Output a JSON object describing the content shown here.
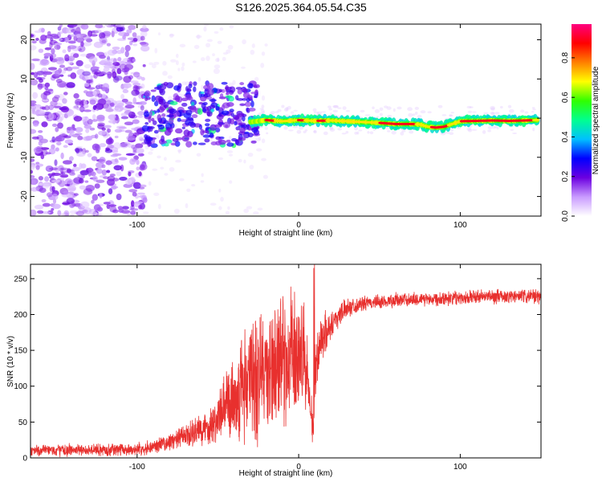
{
  "title": "S126.2025.364.05.54.C35",
  "chart_data": [
    {
      "type": "heatmap",
      "xlabel": "Height of straight line (km)",
      "ylabel": "Frequency (Hz)",
      "xlim": [
        -166,
        150
      ],
      "ylim": [
        -25,
        24
      ],
      "xticks": [
        -100,
        0,
        100
      ],
      "xtick_labels": [
        "-100",
        "0",
        "100"
      ],
      "yticks": [
        -20,
        -10,
        0,
        10,
        20
      ],
      "ytick_labels": [
        "-20",
        "-10",
        "0",
        "10",
        "20"
      ],
      "colorbar": {
        "label": "Normalized spectral amplitude",
        "range": [
          0,
          0.97
        ],
        "ticks": [
          0.0,
          0.2,
          0.4,
          0.6,
          0.8
        ],
        "tick_labels": [
          "0.0",
          "0.2",
          "0.4",
          "0.6",
          "0.8"
        ],
        "colors": [
          "#ffffff",
          "#c99bff",
          "#6b00e0",
          "#0000ff",
          "#00c0ff",
          "#00ff90",
          "#30ff00",
          "#ffff00",
          "#ff8000",
          "#ff0000",
          "#ff0080"
        ]
      },
      "noise_region": {
        "x": [
          -166,
          -95
        ],
        "y": [
          -25,
          24
        ]
      },
      "scatter_region": {
        "x": [
          -95,
          -25
        ],
        "y": [
          -7,
          9
        ]
      },
      "ridge": {
        "x": [
          -30,
          -20,
          -10,
          0,
          10,
          20,
          30,
          40,
          50,
          60,
          70,
          75,
          80,
          85,
          90,
          95,
          100,
          110,
          120,
          130,
          140,
          148
        ],
        "y": [
          -1,
          -0.5,
          -0.8,
          -0.5,
          -0.7,
          -0.6,
          -0.8,
          -1,
          -1.2,
          -1.5,
          -1.5,
          -1.6,
          -2.2,
          -2.4,
          -2.2,
          -1.5,
          -0.8,
          -0.7,
          -0.6,
          -0.7,
          -0.6,
          -0.5
        ]
      }
    },
    {
      "type": "line",
      "xlabel": "Height of straight line (km)",
      "ylabel": "SNR (10 * v/v)",
      "xlim": [
        -166,
        150
      ],
      "ylim": [
        0,
        270
      ],
      "xticks": [
        -100,
        0,
        100
      ],
      "xtick_labels": [
        "-100",
        "0",
        "100"
      ],
      "yticks": [
        0,
        50,
        100,
        150,
        200,
        250
      ],
      "ytick_labels": [
        "0",
        "50",
        "100",
        "150",
        "200",
        "250"
      ],
      "color": "#e8302e",
      "series": [
        {
          "name": "SNR",
          "x": [
            -166,
            -140,
            -120,
            -100,
            -90,
            -80,
            -70,
            -60,
            -50,
            -40,
            -35,
            -30,
            -25,
            -20,
            -15,
            -10,
            -5,
            0,
            3,
            6,
            8,
            9,
            10,
            12,
            15,
            20,
            25,
            30,
            40,
            60,
            80,
            100,
            120,
            150
          ],
          "mean": [
            10,
            11,
            11,
            12,
            16,
            22,
            30,
            38,
            55,
            85,
            100,
            110,
            115,
            120,
            125,
            135,
            140,
            145,
            150,
            100,
            60,
            30,
            110,
            150,
            170,
            185,
            200,
            210,
            215,
            220,
            222,
            224,
            225,
            225
          ],
          "spread": [
            10,
            10,
            10,
            10,
            12,
            14,
            20,
            28,
            40,
            70,
            100,
            110,
            115,
            110,
            110,
            110,
            110,
            100,
            80,
            60,
            40,
            20,
            60,
            60,
            40,
            25,
            20,
            15,
            12,
            12,
            12,
            12,
            12,
            12
          ]
        }
      ]
    }
  ]
}
